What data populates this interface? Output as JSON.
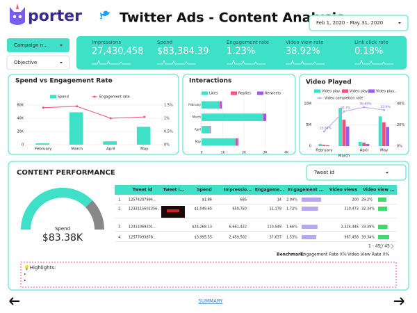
{
  "header": {
    "logo": "porter",
    "title": "Twitter Ads - Content Analysis",
    "date_range": "Feb 1, 2020 - May 31, 2020"
  },
  "filters": [
    "Campaign n...",
    "Objective"
  ],
  "kpis": [
    {
      "label": "Impressions",
      "value": "27,430,458"
    },
    {
      "label": "Spend",
      "value": "$83,384.39"
    },
    {
      "label": "Engagement rate",
      "value": "1.23%"
    },
    {
      "label": "Video view rate",
      "value": "38.92%"
    },
    {
      "label": "Link click rate",
      "value": "0.18%"
    }
  ],
  "chart_data": [
    {
      "type": "bar",
      "title": "Spend vs Engagement Rate",
      "categories": [
        "February",
        "March",
        "April",
        "May"
      ],
      "series": [
        {
          "name": "Spend",
          "color": "#3ee0c8",
          "values": [
            2000,
            49000,
            5000,
            27000
          ]
        },
        {
          "name": "Engagement rate",
          "type": "line",
          "axis": "y2",
          "color": "#f0507a",
          "values": [
            1.4,
            1.45,
            1.0,
            1.05
          ]
        }
      ],
      "ylim": [
        0,
        60000
      ],
      "yticks": [
        0,
        {
          "value": 20000,
          "label": "20K"
        },
        {
          "value": 40000,
          "label": "40K"
        },
        {
          "value": 60000,
          "label": "60K"
        }
      ],
      "y2lim": [
        0,
        1.5
      ],
      "y2ticks": [
        {
          "value": 0,
          "label": "0%"
        },
        {
          "value": 0.5,
          "label": "0.5%"
        },
        {
          "value": 1,
          "label": "1%"
        },
        {
          "value": 1.5,
          "label": "1.5%"
        }
      ],
      "grid": true
    },
    {
      "type": "hbar",
      "title": "Interactions",
      "stacked": true,
      "categories": [
        "February",
        "March",
        "April",
        "May"
      ],
      "series": [
        {
          "name": "Likes",
          "color": "#3ee0c8",
          "values": [
            850,
            2900,
            400,
            1600
          ]
        },
        {
          "name": "Replies",
          "color": "#f0507a",
          "values": [
            30,
            50,
            20,
            80
          ]
        },
        {
          "name": "Retweets",
          "color": "#9b59f0",
          "values": [
            80,
            100,
            20,
            60
          ]
        }
      ],
      "xlim": [
        0,
        4000
      ],
      "xticks": [
        0,
        {
          "value": 1000,
          "label": "1K"
        },
        {
          "value": 2000,
          "label": "2K"
        },
        {
          "value": 3000,
          "label": "3K"
        },
        {
          "value": 4000,
          "label": "4K"
        }
      ],
      "grid": true
    },
    {
      "type": "bar",
      "title": "Video Played",
      "categories": [
        "February",
        "March",
        "April",
        "May"
      ],
      "series": [
        {
          "name": "Video play...",
          "color": "#3ee0c8",
          "values": [
            500000,
            9000000,
            1000000,
            7000000
          ]
        },
        {
          "name": "Video play...",
          "color": "#f0507a",
          "values": [
            300000,
            6200000,
            800000,
            5600000
          ]
        },
        {
          "name": "Video play...",
          "color": "#9b59f0",
          "values": [
            200000,
            4600000,
            500000,
            4500000
          ]
        },
        {
          "name": "Video completion rate",
          "type": "line",
          "axis": "y2",
          "color": "#b9a6f0",
          "values": [
            13.84,
            32.7,
            36.65,
            33.9
          ],
          "value_labels": [
            "13.84%",
            "32.7%",
            "36.65%",
            "33.9%"
          ]
        }
      ],
      "ylim": [
        0,
        10000000
      ],
      "yticks": [
        0,
        {
          "value": 5000000,
          "label": "5M"
        },
        {
          "value": 10000000,
          "label": "10M"
        }
      ],
      "y2lim": [
        0,
        40
      ],
      "y2ticks": [
        {
          "value": 0,
          "label": "0%"
        },
        {
          "value": 20,
          "label": "20%"
        },
        {
          "value": 40,
          "label": "40%"
        }
      ],
      "grid": true
    }
  ],
  "content": {
    "title": "CONTENT PERFORMANCE",
    "filter": "Tweet id",
    "gauge": {
      "label": "Spend",
      "value": "$83.38K"
    },
    "table": {
      "columns": [
        "Tweet id",
        "Tweet i...",
        "Spend",
        "Impressio...",
        "Engageme...",
        "Engagement ...",
        "Video views",
        "Video view ..."
      ],
      "index": [
        "1.",
        "2.",
        "3.",
        "4."
      ],
      "rows": [
        [
          "12574207994...",
          "",
          "$1.86",
          "685",
          "14",
          "2.04%",
          "200",
          "29.2%"
        ],
        [
          "1233115601356...",
          "",
          "$1,049.65",
          "650,750",
          "11,178",
          "1.72%",
          "210,473",
          "32.34%"
        ],
        [
          "12411069201...",
          "",
          "$24,268.13",
          "6,661,422",
          "110,549",
          "1.66%",
          "2,224,445",
          "33.39%"
        ],
        [
          "12577093878...",
          "",
          "$3,995.55",
          "2,459,502",
          "37,637",
          "1.53%",
          "967,458",
          "39.34%"
        ]
      ]
    },
    "pagination": "1 - 45 / 45",
    "benchmark_label": "Benchmark:",
    "benchmarks": [
      "Engagement Rate X%",
      "Video View Rate X%"
    ],
    "highlights": "💡Highlights:",
    "bullets": [
      "•",
      "•"
    ]
  },
  "footer": {
    "link": "SUMMARY"
  }
}
